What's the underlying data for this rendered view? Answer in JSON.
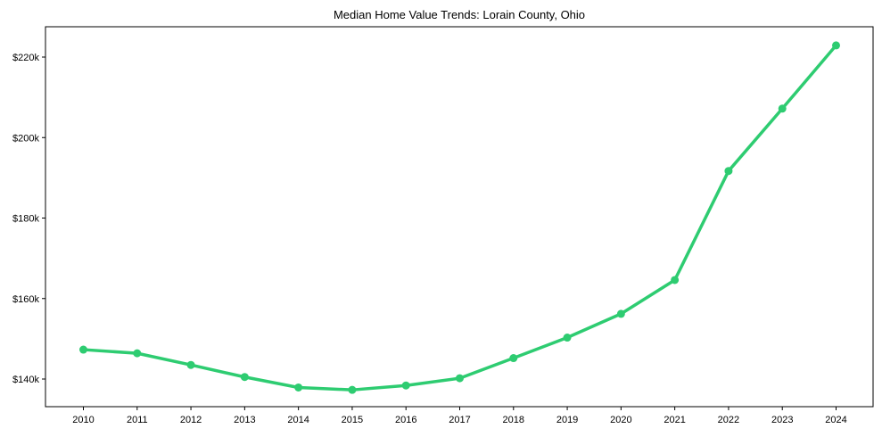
{
  "chart_data": {
    "type": "line",
    "title": "Median Home Value Trends: Lorain County, Ohio",
    "xlabel": "",
    "ylabel": "",
    "categories": [
      "2010",
      "2011",
      "2012",
      "2013",
      "2014",
      "2015",
      "2016",
      "2017",
      "2018",
      "2019",
      "2020",
      "2021",
      "2022",
      "2023",
      "2024"
    ],
    "series": [
      {
        "name": "Median Home Value",
        "color": "#2ecc71",
        "values": [
          147300,
          146400,
          143500,
          140500,
          137900,
          137300,
          138400,
          140200,
          145200,
          150300,
          156200,
          164600,
          191700,
          207200,
          222900
        ]
      }
    ],
    "yticks": [
      140000,
      160000,
      180000,
      200000,
      220000
    ],
    "ytick_labels": [
      "$140k",
      "$160k",
      "$180k",
      "$200k",
      "$220k"
    ],
    "ylim": [
      133500,
      227700
    ],
    "grid": false,
    "legend": null
  }
}
